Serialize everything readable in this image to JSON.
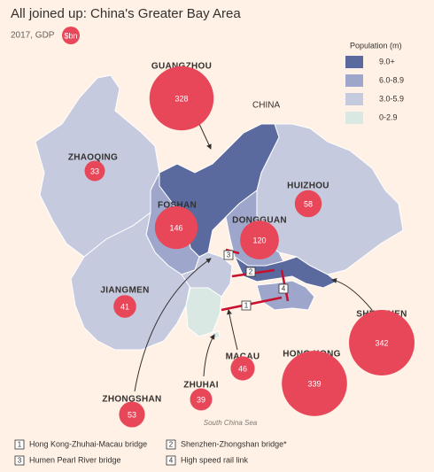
{
  "header": {
    "title": "All joined up: China's Greater Bay Area",
    "subtitle": "2017, GDP",
    "unit": "$bn"
  },
  "legend": {
    "title": "Population (m)",
    "items": [
      {
        "label": "9.0+",
        "color": "#5a6a9f"
      },
      {
        "label": "6.0-8.9",
        "color": "#9ea7cb"
      },
      {
        "label": "3.0-5.9",
        "color": "#c6cadf"
      },
      {
        "label": "0-2.9",
        "color": "#d9e8e3"
      }
    ]
  },
  "labels": {
    "country": "CHINA",
    "sea": "South China Sea"
  },
  "cities": [
    {
      "name": "GUANGZHOU",
      "gdp": 328
    },
    {
      "name": "ZHAOQING",
      "gdp": 33
    },
    {
      "name": "FOSHAN",
      "gdp": 146
    },
    {
      "name": "DONGGUAN",
      "gdp": 120
    },
    {
      "name": "HUIZHOU",
      "gdp": 58
    },
    {
      "name": "JIANGMEN",
      "gdp": 41
    },
    {
      "name": "SHENZHEN",
      "gdp": 342
    },
    {
      "name": "HONG KONG",
      "gdp": 339
    },
    {
      "name": "MACAU",
      "gdp": 46
    },
    {
      "name": "ZHUHAI",
      "gdp": 39
    },
    {
      "name": "ZHONGSHAN",
      "gdp": 53
    }
  ],
  "links": [
    {
      "number": 1,
      "name": "Hong Kong-Zhuhai-Macau bridge"
    },
    {
      "number": 2,
      "name": "Shenzhen-Zhongshan bridge*"
    },
    {
      "number": 3,
      "name": "Humen Pearl River bridge"
    },
    {
      "number": 4,
      "name": "High speed rail link"
    }
  ]
}
